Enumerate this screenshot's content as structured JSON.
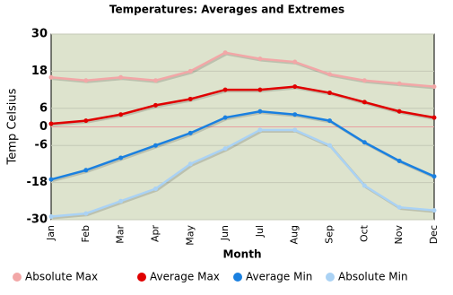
{
  "chart_data": {
    "type": "line",
    "title": "Temperatures: Averages and Extremes",
    "x_label": "Month",
    "y_label": "Temp Celsius",
    "categories": [
      "Jan",
      "Feb",
      "Mar",
      "Apr",
      "May",
      "Jun",
      "Jul",
      "Aug",
      "Sep",
      "Oct",
      "Nov",
      "Dec"
    ],
    "series": [
      {
        "name": "Absolute Max",
        "color": "#f2a7a7",
        "values": [
          16,
          15,
          16,
          15,
          18,
          24,
          22,
          21,
          17,
          15,
          14,
          13
        ]
      },
      {
        "name": "Average Max",
        "color": "#e00000",
        "values": [
          1,
          2,
          4,
          7,
          9,
          12,
          12,
          13,
          11,
          8,
          5,
          3
        ]
      },
      {
        "name": "Average Min",
        "color": "#1a80e0",
        "values": [
          -17,
          -14,
          -10,
          -6,
          -2,
          3,
          5,
          4,
          2,
          -5,
          -11,
          -16
        ]
      },
      {
        "name": "Absolute Min",
        "color": "#aad2f4",
        "values": [
          -29,
          -28,
          -24,
          -20,
          -12,
          -7,
          -1,
          -1,
          -6,
          -19,
          -26,
          -27
        ]
      }
    ],
    "ylim": [
      -30,
      30
    ],
    "yticks": [
      -30,
      -18,
      -6,
      0,
      6,
      18,
      30
    ],
    "grid": true
  }
}
